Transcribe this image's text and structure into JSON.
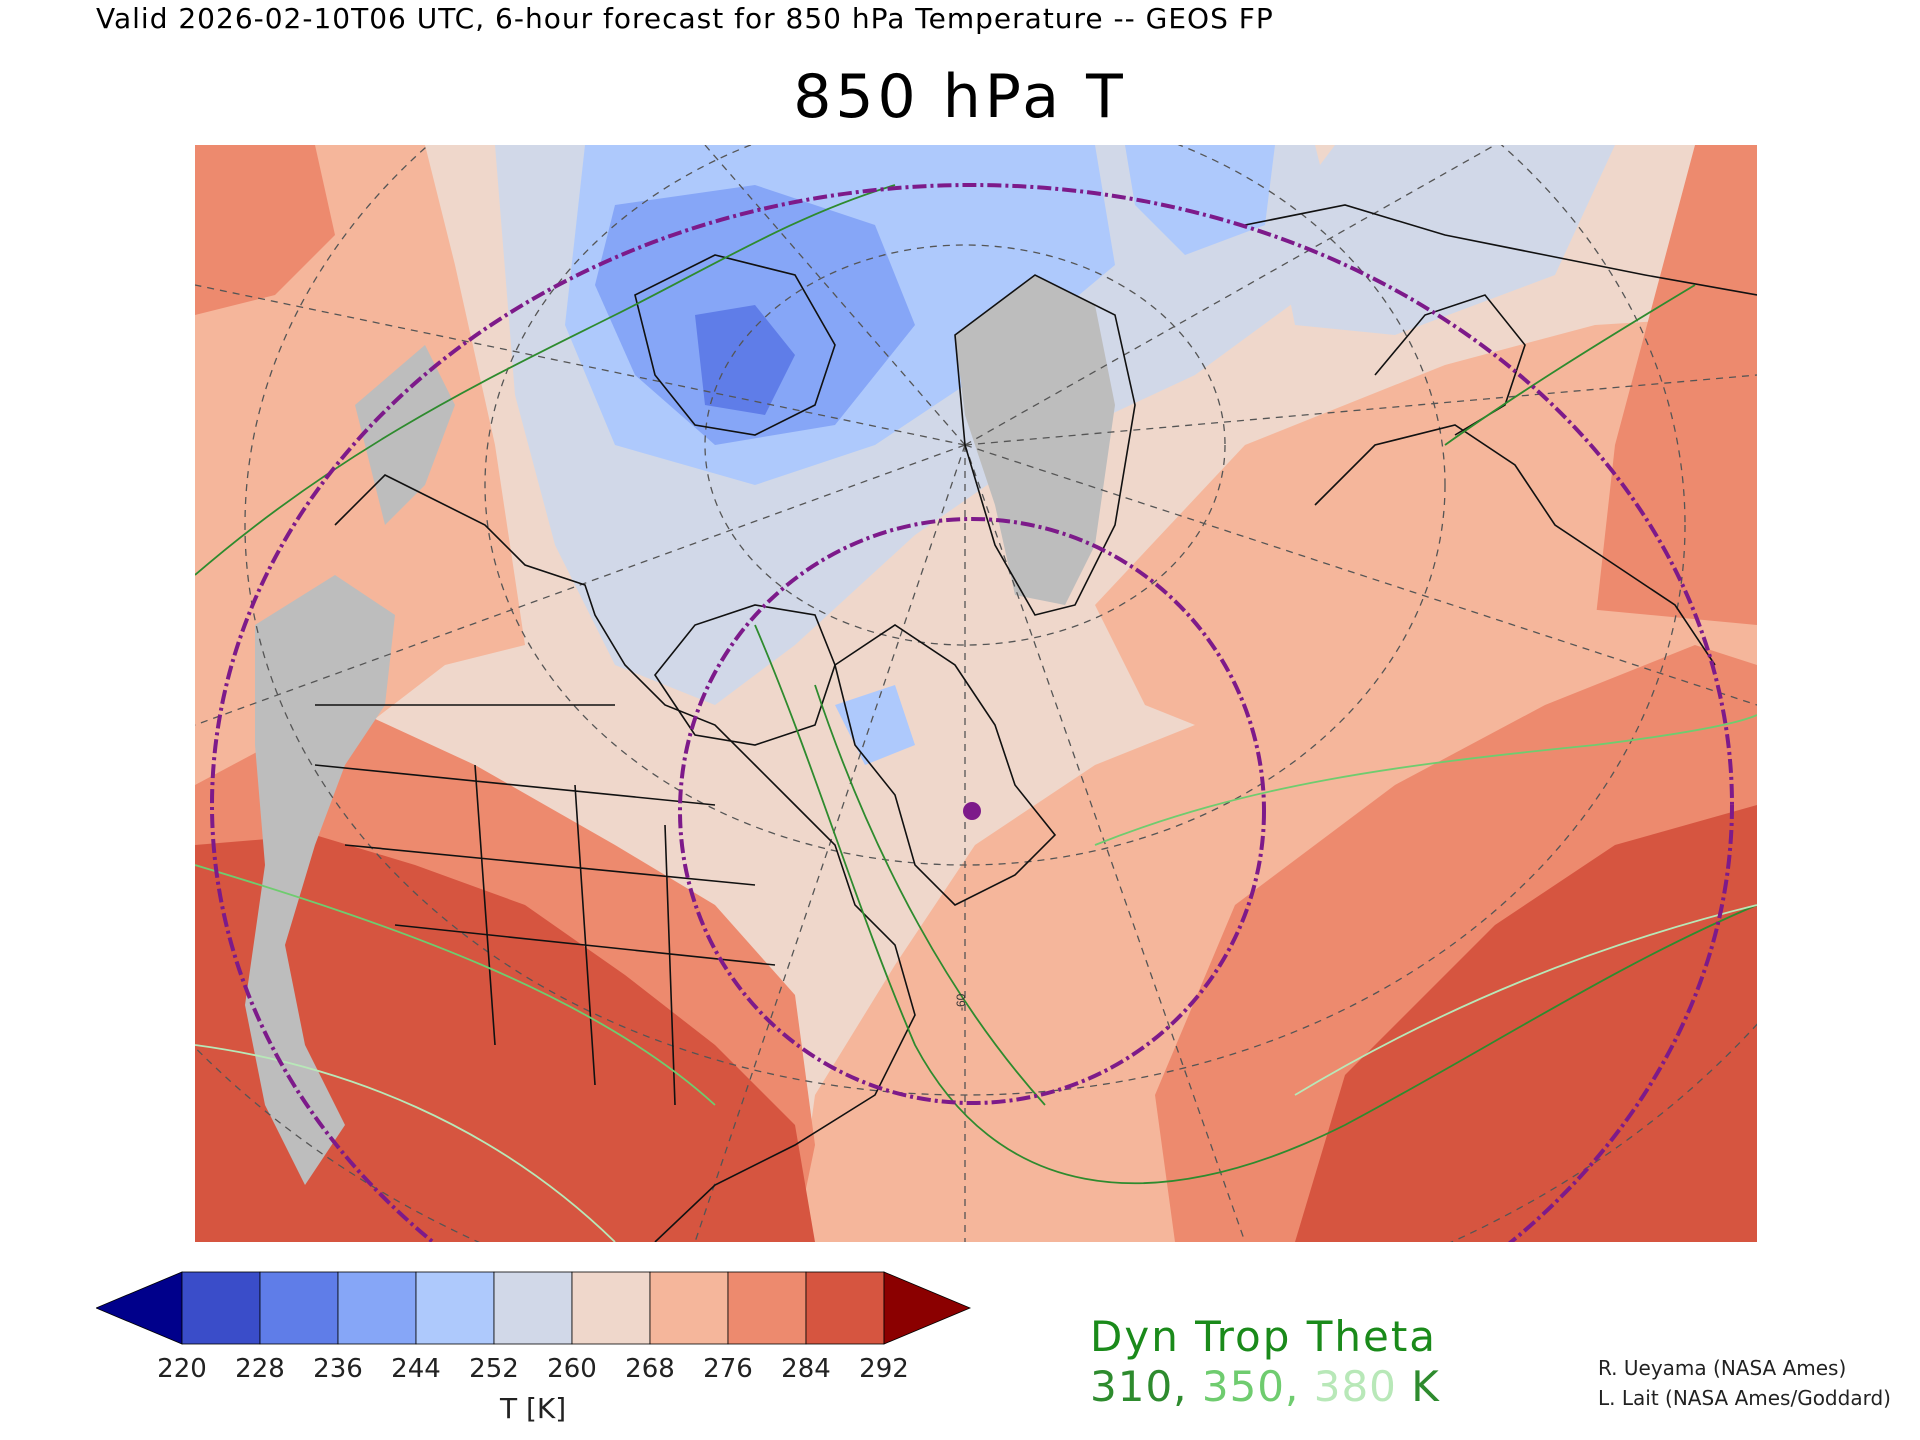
{
  "header": {
    "valid_line": "Valid 2026-02-10T06 UTC, 6-hour forecast for 850 hPa Temperature -- GEOS FP",
    "title": "850 hPa T"
  },
  "colorbar": {
    "ticks": [
      "220",
      "228",
      "236",
      "244",
      "252",
      "260",
      "268",
      "276",
      "284",
      "292"
    ],
    "colors": [
      "#00008b",
      "#3a4dc9",
      "#5f7de8",
      "#86a6f7",
      "#aec9fc",
      "#d1d8e8",
      "#efd7cb",
      "#f5b69b",
      "#ed8a6e",
      "#d65540",
      "#8b0000"
    ],
    "label": "T [K]"
  },
  "legend": {
    "title": "Dyn Trop Theta",
    "values": [
      {
        "text": "310,",
        "color": "#2e8b2e"
      },
      {
        "text": "350,",
        "color": "#6fcc6f"
      },
      {
        "text": "380",
        "color": "#b8e8b8"
      },
      {
        "text": "K",
        "color": "#2e8b2e"
      }
    ]
  },
  "map": {
    "grid_label": "-60",
    "ocean_color": "#efd7cb",
    "colors": {
      "warm": "#f5b69b",
      "warmer": "#ed8a6e",
      "hot": "#d65540",
      "cold": "#d1d8e8",
      "colder": "#aec9fc",
      "coldest": "#86a6f7",
      "deep_cold": "#5f7de8",
      "terrain": "#bdbdbd",
      "theta_contour": "#2e8b2e",
      "circle": "#7d1a8a"
    }
  },
  "credits": {
    "line1": "R. Ueyama (NASA Ames)",
    "line2": "L. Lait (NASA Ames/Goddard)"
  }
}
